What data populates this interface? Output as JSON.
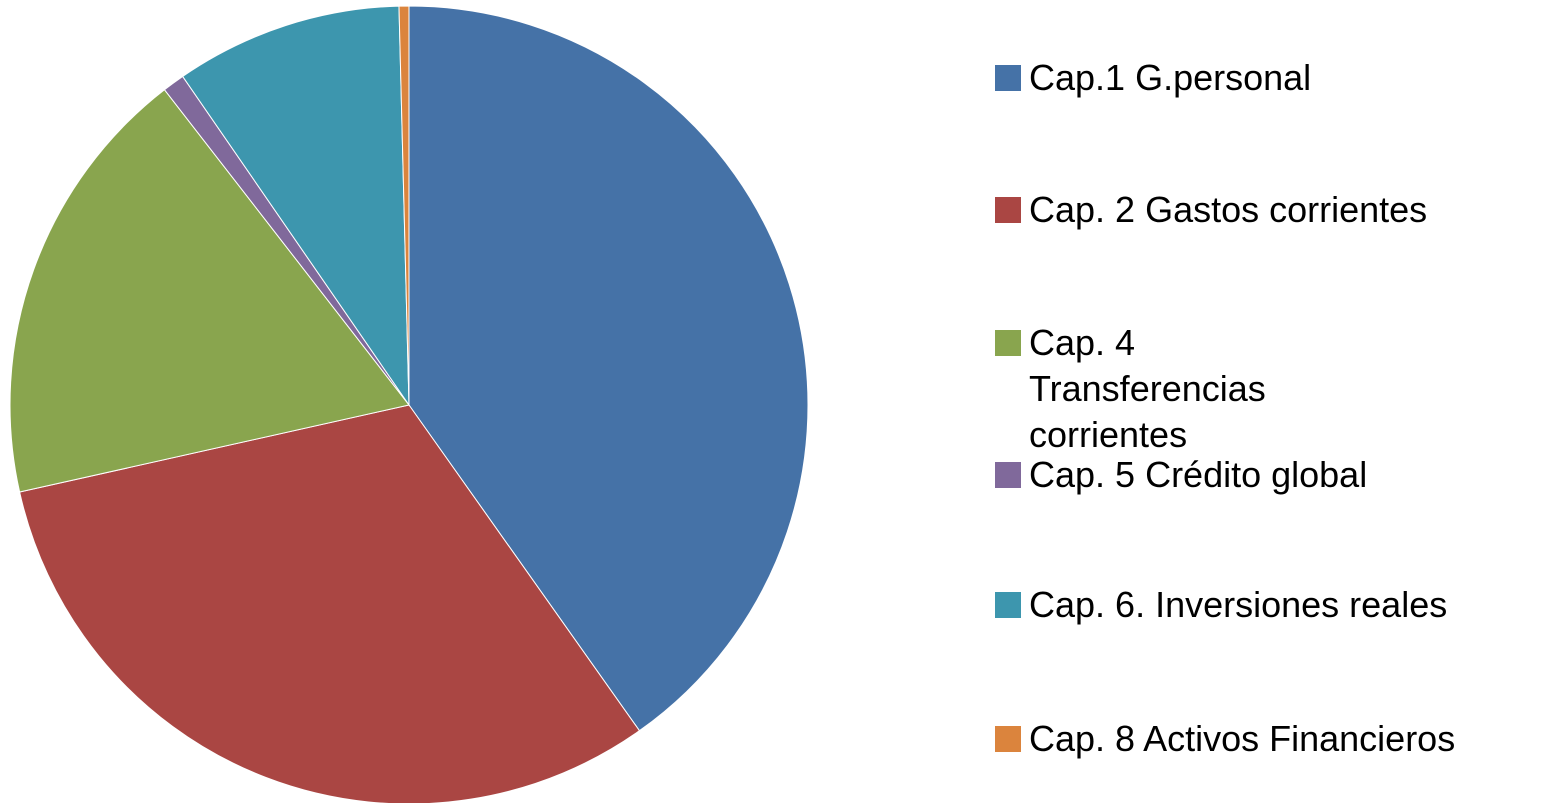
{
  "chart_data": {
    "type": "pie",
    "categories": [
      "Cap.1 G.personal",
      "Cap. 2 Gastos corrientes",
      "Cap. 4 Transferencias corrientes",
      "Cap. 5 Crédito global",
      "Cap. 6. Inversiones reales",
      "Cap. 8 Activos Financieros"
    ],
    "values": [
      40.2,
      31.3,
      18.0,
      0.9,
      9.2,
      0.4
    ],
    "colors": [
      "#4572a7",
      "#aa4643",
      "#89a54e",
      "#80699b",
      "#3d96ae",
      "#db843d"
    ],
    "legend": "right"
  }
}
